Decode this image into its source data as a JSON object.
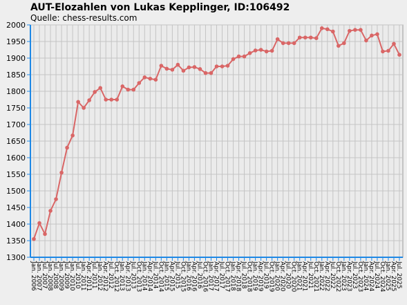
{
  "chart_data": {
    "type": "line",
    "title": "AUT-Elozahlen von Lukas Kepplinger, ID:106492",
    "subtitle": "Quelle: chess-results.com",
    "categories": [
      "Jan. 2006",
      "Jan. 2007",
      "Jul. 2007",
      "Jan. 2008",
      "Jul. 2008",
      "Jan. 2009",
      "Jul. 2009",
      "Jan. 2010",
      "Jul. 2010",
      "Jan. 2011",
      "Apr. 2011",
      "Jul. 2011",
      "Jan. 2012",
      "Apr. 2012",
      "Jul. 2012",
      "Oct. 2012",
      "Jan. 2013",
      "Apr. 2013",
      "Jul. 2013",
      "Oct. 2013",
      "Jan. 2014",
      "Apr. 2014",
      "Jul. 2014",
      "Oct. 2014",
      "Jan. 2015",
      "Apr. 2015",
      "Jul. 2015",
      "Oct. 2015",
      "Jan. 2016",
      "Apr. 2016",
      "Jul. 2016",
      "Oct. 2016",
      "Jan. 2017",
      "Apr. 2017",
      "Jul. 2017",
      "Oct. 2017",
      "Jan. 2018",
      "Apr. 2018",
      "Jul. 2018",
      "Oct. 2018",
      "Jan. 2019",
      "Apr. 2019",
      "Jul. 2019",
      "Oct. 2019",
      "Jan. 2020",
      "Apr. 2020",
      "Jul. 2020",
      "Oct. 2020",
      "Jan. 2021",
      "Apr. 2021",
      "Jul. 2021",
      "Oct. 2021",
      "Jan. 2022",
      "Apr. 2022",
      "Jul. 2022",
      "Oct. 2022",
      "Jan. 2023",
      "Apr. 2023",
      "Jul. 2023",
      "Oct. 2023",
      "Jan. 2024",
      "Apr. 2024",
      "Jul. 2024",
      "Oct. 2024",
      "Jan. 2025",
      "Apr. 2025",
      "Jul. 2025"
    ],
    "series": [
      {
        "name": "Elo",
        "color": "#d96666",
        "values": [
          1355,
          1403,
          1370,
          1440,
          1475,
          1555,
          1630,
          1667,
          1768,
          1750,
          1773,
          1798,
          1810,
          1775,
          1775,
          1775,
          1815,
          1805,
          1805,
          1825,
          1842,
          1838,
          1835,
          1877,
          1868,
          1865,
          1880,
          1862,
          1872,
          1873,
          1867,
          1855,
          1855,
          1875,
          1875,
          1877,
          1897,
          1905,
          1905,
          1915,
          1923,
          1925,
          1920,
          1922,
          1957,
          1945,
          1945,
          1945,
          1962,
          1962,
          1962,
          1960,
          1990,
          1987,
          1980,
          1937,
          1945,
          1982,
          1985,
          1985,
          1953,
          1968,
          1972,
          1920,
          1922,
          1943,
          1910
        ]
      }
    ],
    "ylim": [
      1300,
      2000
    ],
    "yticks": [
      1300,
      1350,
      1400,
      1450,
      1500,
      1550,
      1600,
      1650,
      1700,
      1750,
      1800,
      1850,
      1900,
      1950,
      2000
    ],
    "grid": true
  }
}
